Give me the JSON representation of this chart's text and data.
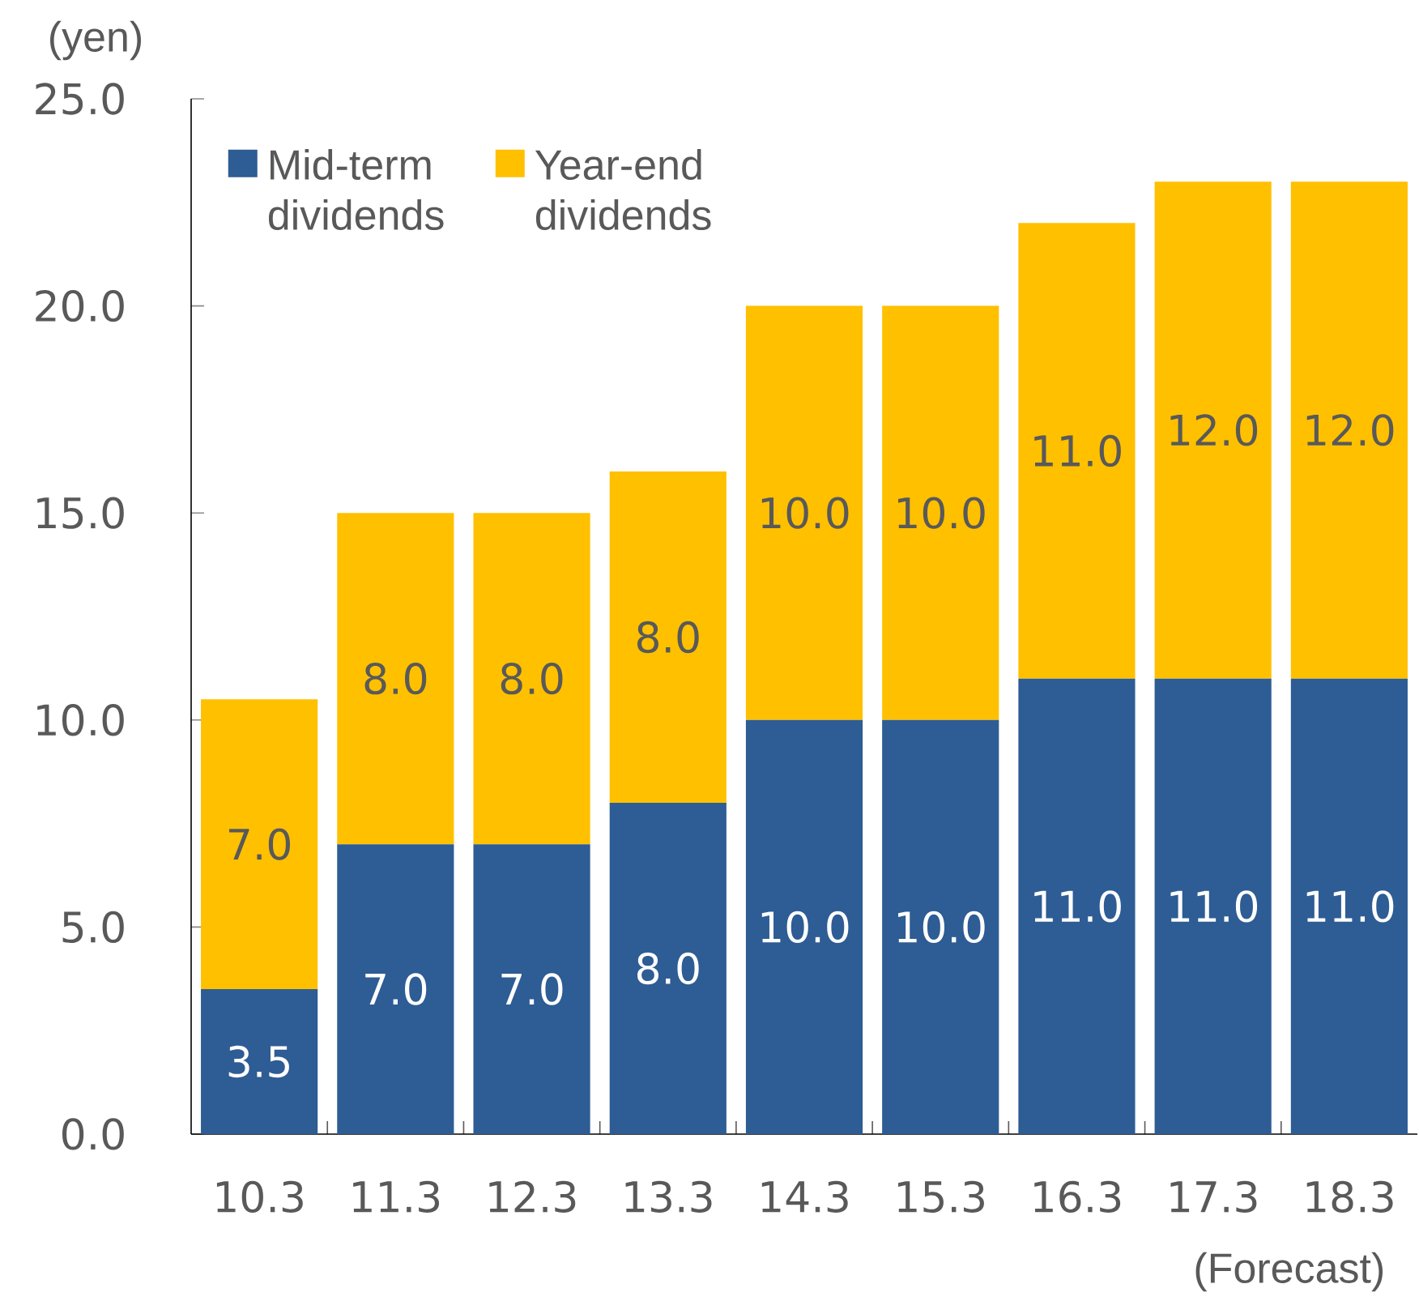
{
  "chart_data": {
    "type": "bar",
    "stacked": true,
    "ylabel": "(yen)",
    "categories": [
      "10.3",
      "11.3",
      "12.3",
      "13.3",
      "14.3",
      "15.3",
      "16.3",
      "17.3",
      "18.3"
    ],
    "series": [
      {
        "name": "Mid-term dividends",
        "color": "#2e5c94",
        "values": [
          3.5,
          7,
          7,
          8,
          10,
          10,
          11,
          11,
          11
        ],
        "value_labels": [
          "3.5",
          "7.0",
          "7.0",
          "8.0",
          "10.0",
          "10.0",
          "11.0",
          "11.0",
          "11.0"
        ]
      },
      {
        "name": "Year-end dividends",
        "color": "#ffc000",
        "values": [
          7,
          8,
          8,
          8,
          10,
          10,
          11,
          12,
          12
        ],
        "value_labels": [
          "7.0",
          "8.0",
          "8.0",
          "8.0",
          "10.0",
          "10.0",
          "11.0",
          "12.0",
          "12.0"
        ]
      }
    ],
    "ylim": [
      0,
      25
    ],
    "yticks": [
      {
        "value": 0,
        "label": "0.0"
      },
      {
        "value": 5,
        "label": "5.0"
      },
      {
        "value": 10,
        "label": "10.0"
      },
      {
        "value": 15,
        "label": "15.0"
      },
      {
        "value": 20,
        "label": "20.0"
      },
      {
        "value": 25,
        "label": "25.0"
      }
    ],
    "legend": "top left",
    "annotations": [
      "(Forecast)"
    ]
  }
}
